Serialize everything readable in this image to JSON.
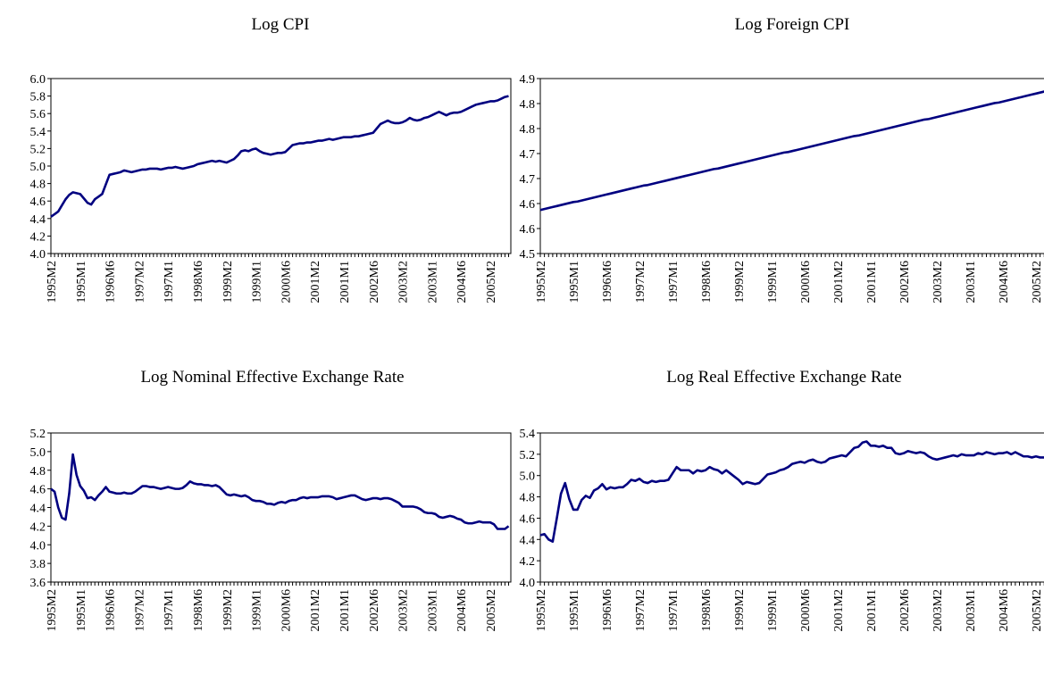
{
  "chart_data": [
    {
      "type": "line",
      "title": "Log CPI",
      "categories": [
        "1995M2",
        null,
        null,
        null,
        null,
        null,
        null,
        null,
        "1995M1",
        null,
        null,
        null,
        null,
        null,
        null,
        null,
        "1996M6",
        null,
        null,
        null,
        null,
        null,
        null,
        null,
        "1997M2",
        null,
        null,
        null,
        null,
        null,
        null,
        null,
        "1997M1",
        null,
        null,
        null,
        null,
        null,
        null,
        null,
        "1998M6",
        null,
        null,
        null,
        null,
        null,
        null,
        null,
        "1999M2",
        null,
        null,
        null,
        null,
        null,
        null,
        null,
        "1999M1",
        null,
        null,
        null,
        null,
        null,
        null,
        null,
        "2000M6",
        null,
        null,
        null,
        null,
        null,
        null,
        null,
        "2001M2",
        null,
        null,
        null,
        null,
        null,
        null,
        null,
        "2001M1",
        null,
        null,
        null,
        null,
        null,
        null,
        null,
        "2002M6",
        null,
        null,
        null,
        null,
        null,
        null,
        null,
        "2003M2",
        null,
        null,
        null,
        null,
        null,
        null,
        null,
        "2003M1",
        null,
        null,
        null,
        null,
        null,
        null,
        null,
        "2004M6",
        null,
        null,
        null,
        null,
        null,
        null,
        null,
        "2005M2",
        null,
        null,
        null,
        null,
        null
      ],
      "values": [
        4.42,
        4.45,
        4.48,
        4.55,
        4.62,
        4.67,
        4.7,
        4.69,
        4.68,
        4.63,
        4.58,
        4.56,
        4.62,
        4.65,
        4.68,
        4.79,
        4.9,
        4.91,
        4.92,
        4.93,
        4.95,
        4.94,
        4.93,
        4.94,
        4.95,
        4.96,
        4.96,
        4.97,
        4.97,
        4.97,
        4.96,
        4.97,
        4.98,
        4.98,
        4.99,
        4.98,
        4.97,
        4.98,
        4.99,
        5.0,
        5.02,
        5.03,
        5.04,
        5.05,
        5.06,
        5.05,
        5.06,
        5.05,
        5.04,
        5.06,
        5.08,
        5.12,
        5.17,
        5.18,
        5.17,
        5.19,
        5.2,
        5.17,
        5.15,
        5.14,
        5.13,
        5.14,
        5.15,
        5.15,
        5.16,
        5.2,
        5.24,
        5.25,
        5.26,
        5.26,
        5.27,
        5.27,
        5.28,
        5.29,
        5.29,
        5.3,
        5.31,
        5.3,
        5.31,
        5.32,
        5.33,
        5.33,
        5.33,
        5.34,
        5.34,
        5.35,
        5.36,
        5.37,
        5.38,
        5.43,
        5.48,
        5.5,
        5.52,
        5.5,
        5.49,
        5.49,
        5.5,
        5.52,
        5.55,
        5.53,
        5.52,
        5.53,
        5.55,
        5.56,
        5.58,
        5.6,
        5.62,
        5.6,
        5.58,
        5.6,
        5.61,
        5.61,
        5.62,
        5.64,
        5.66,
        5.68,
        5.7,
        5.71,
        5.72,
        5.73,
        5.74,
        5.74,
        5.75,
        5.77,
        5.79,
        5.8
      ],
      "color": "#000080",
      "ylim": [
        4,
        6
      ],
      "yticks": [
        {
          "value": 4,
          "label": "4.0"
        },
        4.2,
        4.4,
        4.6,
        4.8,
        {
          "value": 5,
          "label": "5.0"
        },
        5.2,
        5.4,
        5.6,
        5.8,
        {
          "value": 6,
          "label": "6.0"
        }
      ]
    },
    {
      "type": "line",
      "title": "Log Foreign CPI",
      "categories": [
        "1995M2",
        null,
        null,
        null,
        null,
        null,
        null,
        null,
        "1995M1",
        null,
        null,
        null,
        null,
        null,
        null,
        null,
        "1996M6",
        null,
        null,
        null,
        null,
        null,
        null,
        null,
        "1997M2",
        null,
        null,
        null,
        null,
        null,
        null,
        null,
        "1997M1",
        null,
        null,
        null,
        null,
        null,
        null,
        null,
        "1998M6",
        null,
        null,
        null,
        null,
        null,
        null,
        null,
        "1999M2",
        null,
        null,
        null,
        null,
        null,
        null,
        null,
        "1999M1",
        null,
        null,
        null,
        null,
        null,
        null,
        null,
        "2000M6",
        null,
        null,
        null,
        null,
        null,
        null,
        null,
        "2001M2",
        null,
        null,
        null,
        null,
        null,
        null,
        null,
        "2001M1",
        null,
        null,
        null,
        null,
        null,
        null,
        null,
        "2002M6",
        null,
        null,
        null,
        null,
        null,
        null,
        null,
        "2003M2",
        null,
        null,
        null,
        null,
        null,
        null,
        null,
        "2003M1",
        null,
        null,
        null,
        null,
        null,
        null,
        null,
        "2004M6",
        null,
        null,
        null,
        null,
        null,
        null,
        null,
        "2005M2",
        null,
        null,
        null,
        null,
        null
      ],
      "values": [
        4.587,
        4.589,
        4.591,
        4.593,
        4.595,
        4.597,
        4.599,
        4.601,
        4.603,
        4.604,
        4.606,
        4.608,
        4.61,
        4.612,
        4.614,
        4.616,
        4.618,
        4.62,
        4.622,
        4.624,
        4.626,
        4.628,
        4.63,
        4.632,
        4.634,
        4.636,
        4.637,
        4.639,
        4.641,
        4.643,
        4.645,
        4.647,
        4.649,
        4.651,
        4.653,
        4.655,
        4.657,
        4.659,
        4.661,
        4.663,
        4.665,
        4.667,
        4.669,
        4.67,
        4.672,
        4.674,
        4.676,
        4.678,
        4.68,
        4.682,
        4.684,
        4.686,
        4.688,
        4.69,
        4.692,
        4.694,
        4.696,
        4.698,
        4.7,
        4.702,
        4.703,
        4.705,
        4.707,
        4.709,
        4.711,
        4.713,
        4.715,
        4.717,
        4.719,
        4.721,
        4.723,
        4.725,
        4.727,
        4.729,
        4.731,
        4.733,
        4.735,
        4.736,
        4.738,
        4.74,
        4.742,
        4.744,
        4.746,
        4.748,
        4.75,
        4.752,
        4.754,
        4.756,
        4.758,
        4.76,
        4.762,
        4.764,
        4.766,
        4.768,
        4.769,
        4.771,
        4.773,
        4.775,
        4.777,
        4.779,
        4.781,
        4.783,
        4.785,
        4.787,
        4.789,
        4.791,
        4.793,
        4.795,
        4.797,
        4.799,
        4.801,
        4.802,
        4.804,
        4.806,
        4.808,
        4.81,
        4.812,
        4.814,
        4.816,
        4.818,
        4.82,
        4.822,
        4.824,
        4.826,
        4.828,
        4.829
      ],
      "color": "#000080",
      "ylim": [
        4.5,
        4.85
      ],
      "yticks": [
        4.5,
        {
          "value": 4.55,
          "label": "4.6"
        },
        4.6,
        {
          "value": 4.65,
          "label": "4.7"
        },
        4.7,
        {
          "value": 4.75,
          "label": "4.8"
        },
        4.8,
        {
          "value": 4.85,
          "label": "4.9"
        }
      ]
    },
    {
      "type": "line",
      "title": "Log Nominal Effective Exchange Rate",
      "categories": [
        "1995M2",
        null,
        null,
        null,
        null,
        null,
        null,
        null,
        "1995M1",
        null,
        null,
        null,
        null,
        null,
        null,
        null,
        "1996M6",
        null,
        null,
        null,
        null,
        null,
        null,
        null,
        "1997M2",
        null,
        null,
        null,
        null,
        null,
        null,
        null,
        "1997M1",
        null,
        null,
        null,
        null,
        null,
        null,
        null,
        "1998M6",
        null,
        null,
        null,
        null,
        null,
        null,
        null,
        "1999M2",
        null,
        null,
        null,
        null,
        null,
        null,
        null,
        "1999M1",
        null,
        null,
        null,
        null,
        null,
        null,
        null,
        "2000M6",
        null,
        null,
        null,
        null,
        null,
        null,
        null,
        "2001M2",
        null,
        null,
        null,
        null,
        null,
        null,
        null,
        "2001M1",
        null,
        null,
        null,
        null,
        null,
        null,
        null,
        "2002M6",
        null,
        null,
        null,
        null,
        null,
        null,
        null,
        "2003M2",
        null,
        null,
        null,
        null,
        null,
        null,
        null,
        "2003M1",
        null,
        null,
        null,
        null,
        null,
        null,
        null,
        "2004M6",
        null,
        null,
        null,
        null,
        null,
        null,
        null,
        "2005M2",
        null,
        null,
        null,
        null,
        null
      ],
      "values": [
        4.6,
        4.57,
        4.4,
        4.29,
        4.27,
        4.55,
        4.97,
        4.75,
        4.63,
        4.58,
        4.5,
        4.51,
        4.48,
        4.53,
        4.57,
        4.62,
        4.57,
        4.56,
        4.55,
        4.55,
        4.56,
        4.55,
        4.55,
        4.57,
        4.6,
        4.63,
        4.63,
        4.62,
        4.62,
        4.61,
        4.6,
        4.61,
        4.62,
        4.61,
        4.6,
        4.6,
        4.61,
        4.64,
        4.68,
        4.66,
        4.65,
        4.65,
        4.64,
        4.64,
        4.63,
        4.64,
        4.62,
        4.58,
        4.54,
        4.53,
        4.54,
        4.53,
        4.52,
        4.53,
        4.51,
        4.48,
        4.47,
        4.47,
        4.46,
        4.44,
        4.44,
        4.43,
        4.45,
        4.46,
        4.45,
        4.47,
        4.48,
        4.48,
        4.5,
        4.51,
        4.5,
        4.51,
        4.51,
        4.51,
        4.52,
        4.52,
        4.52,
        4.51,
        4.49,
        4.5,
        4.51,
        4.52,
        4.53,
        4.53,
        4.51,
        4.49,
        4.48,
        4.49,
        4.5,
        4.5,
        4.49,
        4.5,
        4.5,
        4.49,
        4.47,
        4.45,
        4.41,
        4.41,
        4.41,
        4.41,
        4.4,
        4.38,
        4.35,
        4.34,
        4.34,
        4.33,
        4.3,
        4.29,
        4.3,
        4.31,
        4.3,
        4.28,
        4.27,
        4.24,
        4.23,
        4.23,
        4.24,
        4.25,
        4.24,
        4.24,
        4.24,
        4.22,
        4.17,
        4.17,
        4.17,
        4.2
      ],
      "color": "#000080",
      "ylim": [
        3.6,
        5.2
      ],
      "yticks": [
        3.6,
        3.8,
        {
          "value": 4,
          "label": "4.0"
        },
        4.2,
        4.4,
        4.6,
        4.8,
        {
          "value": 5,
          "label": "5.0"
        },
        5.2
      ]
    },
    {
      "type": "line",
      "title": "Log Real Effective Exchange Rate",
      "categories": [
        "1995M2",
        null,
        null,
        null,
        null,
        null,
        null,
        null,
        "1995M1",
        null,
        null,
        null,
        null,
        null,
        null,
        null,
        "1996M6",
        null,
        null,
        null,
        null,
        null,
        null,
        null,
        "1997M2",
        null,
        null,
        null,
        null,
        null,
        null,
        null,
        "1997M1",
        null,
        null,
        null,
        null,
        null,
        null,
        null,
        "1998M6",
        null,
        null,
        null,
        null,
        null,
        null,
        null,
        "1999M2",
        null,
        null,
        null,
        null,
        null,
        null,
        null,
        "1999M1",
        null,
        null,
        null,
        null,
        null,
        null,
        null,
        "2000M6",
        null,
        null,
        null,
        null,
        null,
        null,
        null,
        "2001M2",
        null,
        null,
        null,
        null,
        null,
        null,
        null,
        "2001M1",
        null,
        null,
        null,
        null,
        null,
        null,
        null,
        "2002M6",
        null,
        null,
        null,
        null,
        null,
        null,
        null,
        "2003M2",
        null,
        null,
        null,
        null,
        null,
        null,
        null,
        "2003M1",
        null,
        null,
        null,
        null,
        null,
        null,
        null,
        "2004M6",
        null,
        null,
        null,
        null,
        null,
        null,
        null,
        "2005M2",
        null,
        null,
        null,
        null,
        null
      ],
      "values": [
        4.44,
        4.45,
        4.4,
        4.38,
        4.6,
        4.83,
        4.93,
        4.78,
        4.68,
        4.68,
        4.77,
        4.81,
        4.79,
        4.86,
        4.88,
        4.92,
        4.87,
        4.89,
        4.88,
        4.89,
        4.89,
        4.92,
        4.96,
        4.95,
        4.97,
        4.94,
        4.93,
        4.95,
        4.94,
        4.95,
        4.95,
        4.96,
        5.02,
        5.08,
        5.05,
        5.05,
        5.05,
        5.02,
        5.05,
        5.04,
        5.05,
        5.08,
        5.06,
        5.05,
        5.02,
        5.05,
        5.02,
        4.99,
        4.96,
        4.92,
        4.94,
        4.93,
        4.92,
        4.93,
        4.97,
        5.01,
        5.02,
        5.03,
        5.05,
        5.06,
        5.08,
        5.11,
        5.12,
        5.13,
        5.12,
        5.14,
        5.15,
        5.13,
        5.12,
        5.13,
        5.16,
        5.17,
        5.18,
        5.19,
        5.18,
        5.22,
        5.26,
        5.27,
        5.31,
        5.32,
        5.28,
        5.28,
        5.27,
        5.28,
        5.26,
        5.26,
        5.21,
        5.2,
        5.21,
        5.23,
        5.22,
        5.21,
        5.22,
        5.21,
        5.18,
        5.16,
        5.15,
        5.16,
        5.17,
        5.18,
        5.19,
        5.18,
        5.2,
        5.19,
        5.19,
        5.19,
        5.21,
        5.2,
        5.22,
        5.21,
        5.2,
        5.21,
        5.21,
        5.22,
        5.2,
        5.22,
        5.2,
        5.18,
        5.18,
        5.17,
        5.18,
        5.17,
        5.17,
        5.18,
        5.17,
        5.17
      ],
      "color": "#000080",
      "ylim": [
        4,
        5.4
      ],
      "yticks": [
        {
          "value": 4,
          "label": "4.0"
        },
        4.2,
        4.4,
        4.6,
        4.8,
        {
          "value": 5,
          "label": "5.0"
        },
        5.2,
        5.4
      ]
    }
  ]
}
